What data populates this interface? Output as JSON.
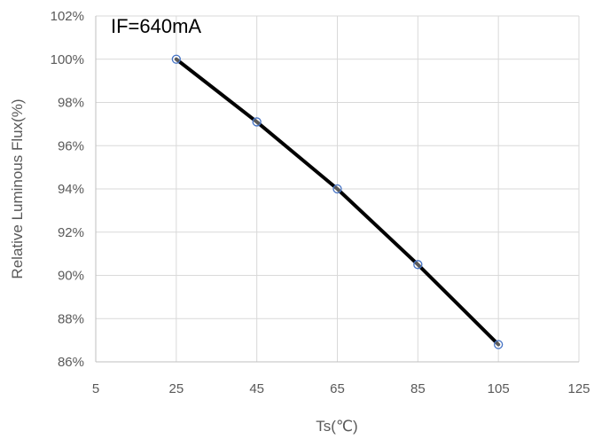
{
  "chart_data": {
    "type": "line",
    "title": "",
    "annotation": "IF=640mA",
    "xlabel": "Ts(℃)",
    "ylabel": "Relative Luminous Flux(%)",
    "xlim": [
      5,
      125
    ],
    "ylim": [
      86,
      102
    ],
    "x_ticks": [
      5,
      25,
      45,
      65,
      85,
      105,
      125
    ],
    "y_ticks": [
      86,
      88,
      90,
      92,
      94,
      96,
      98,
      100,
      102
    ],
    "y_tick_suffix": "%",
    "grid": true,
    "legend": "none",
    "series": [
      {
        "x": [
          25,
          45,
          65,
          85,
          105
        ],
        "y": [
          100,
          97.1,
          94.0,
          90.5,
          86.8
        ],
        "line_color": "#000000",
        "marker_color": "#4472c4",
        "marker": "circle"
      }
    ]
  }
}
